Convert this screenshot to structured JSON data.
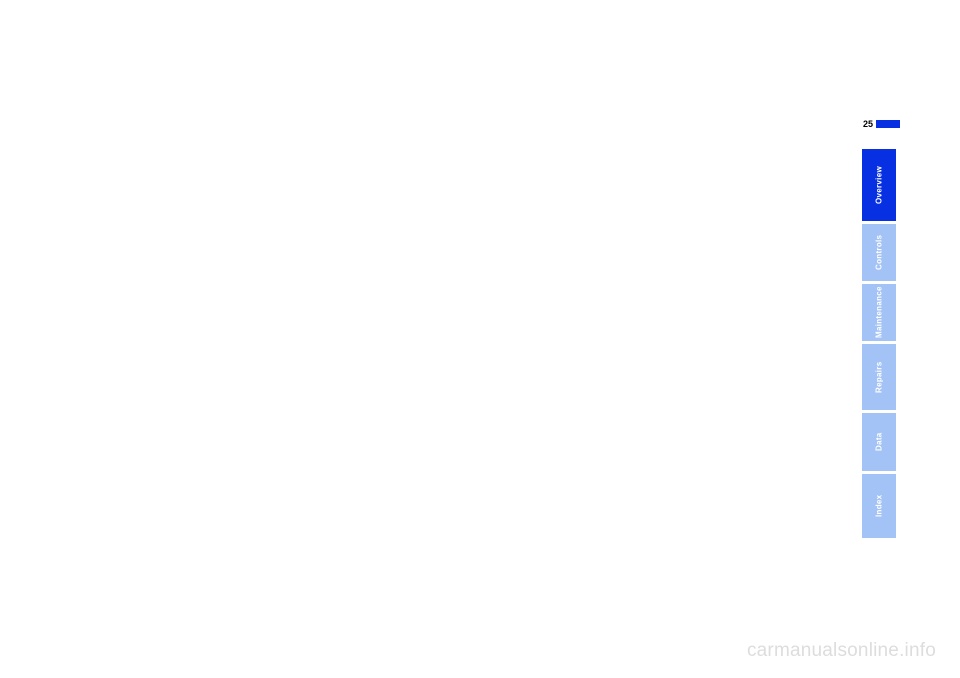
{
  "page_number": "25",
  "colors": {
    "active_tab": "#0830e3",
    "inactive_tab": "#a3c2f5",
    "page_mark": "#0830e3",
    "watermark": "#dddddd"
  },
  "tabs": [
    {
      "label": "Overview",
      "active": true
    },
    {
      "label": "Controls",
      "active": false
    },
    {
      "label": "Maintenance",
      "active": false
    },
    {
      "label": "Repairs",
      "active": false
    },
    {
      "label": "Data",
      "active": false
    },
    {
      "label": "Index",
      "active": false
    }
  ],
  "watermark": "carmanualsonline.info"
}
